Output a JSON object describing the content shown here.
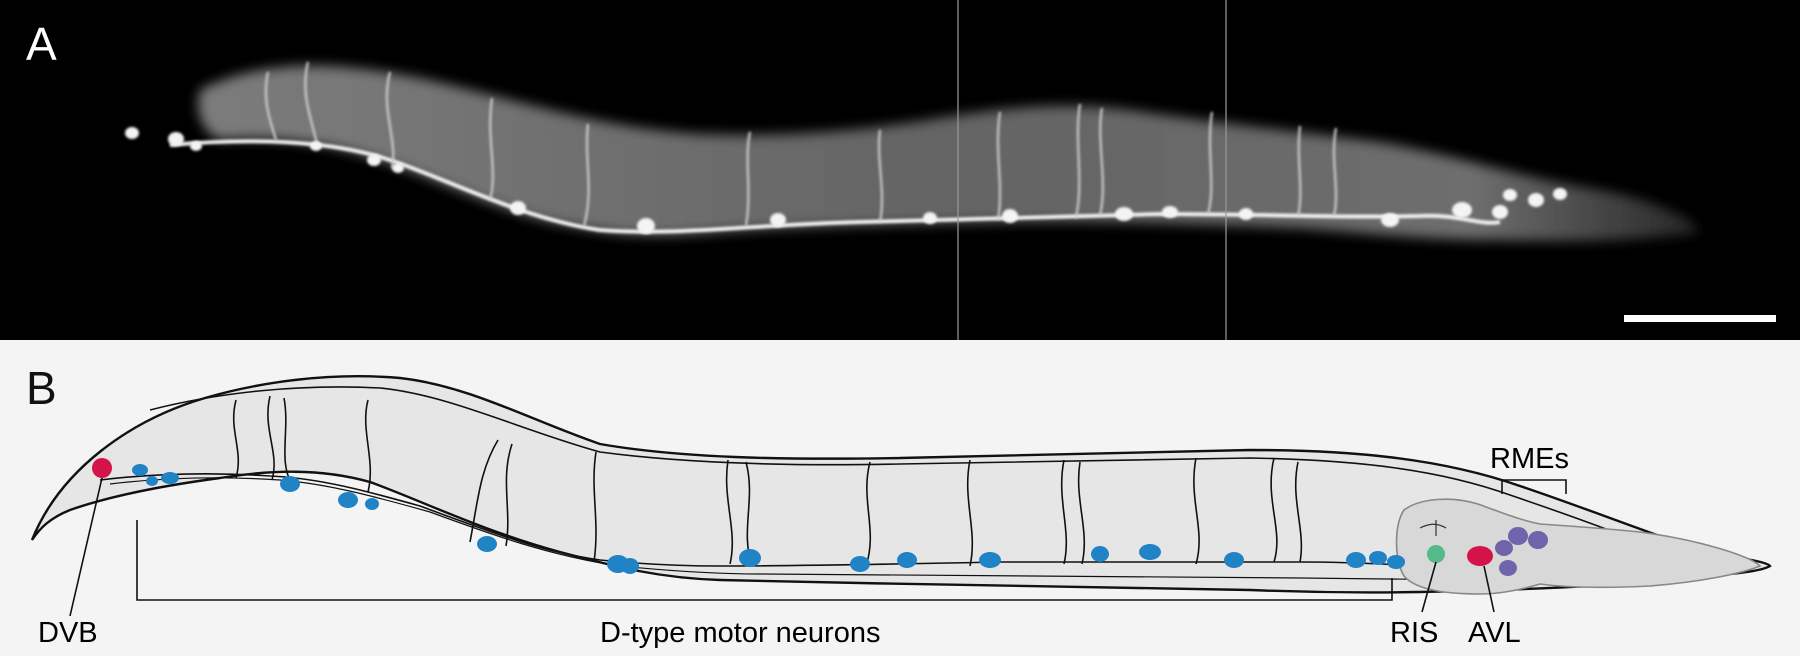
{
  "panels": {
    "a": {
      "label": "A"
    },
    "b": {
      "label": "B"
    }
  },
  "labels": {
    "dvb": "DVB",
    "d_type": "D-type motor neurons",
    "ris": "RIS",
    "avl": "AVL",
    "rmes": "RMEs"
  },
  "colors": {
    "photo_background": "#000000",
    "diagram_background": "#f4f4f4",
    "worm_fill": "#e6e6e6",
    "pharynx_fill": "#d6d6d6",
    "d_type_neuron": "#1f83c6",
    "dvb_neuron": "#d4134a",
    "avl_neuron": "#d4134a",
    "ris_neuron": "#55b98a",
    "rme_neuron": "#7164ad"
  }
}
